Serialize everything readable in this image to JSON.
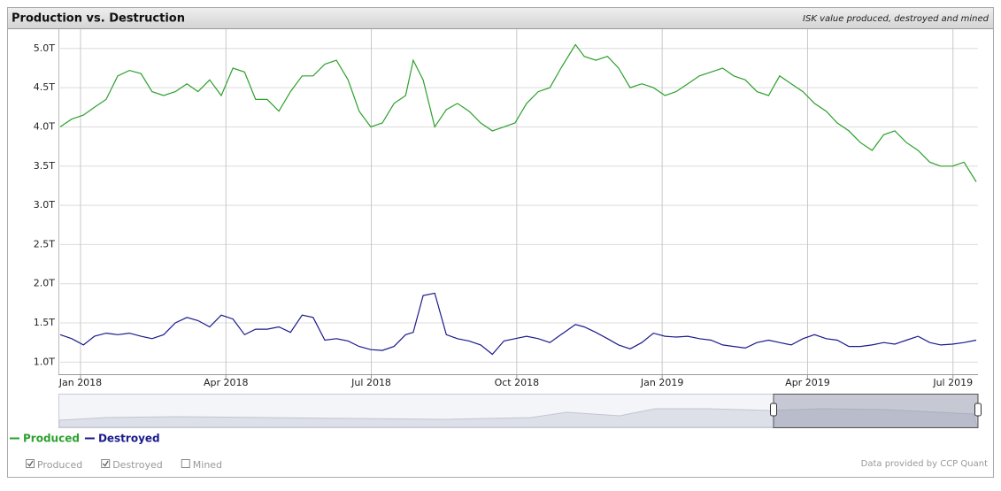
{
  "chart_data": {
    "type": "line",
    "title": "Production vs. Destruction",
    "subtitle": "ISK value produced, destroyed and mined",
    "x": [
      2017.965,
      2017.985,
      2018.005,
      2018.024,
      2018.044,
      2018.064,
      2018.084,
      2018.104,
      2018.123,
      2018.143,
      2018.163,
      2018.183,
      2018.202,
      2018.222,
      2018.242,
      2018.262,
      2018.282,
      2018.301,
      2018.321,
      2018.341,
      2018.361,
      2018.381,
      2018.4,
      2018.42,
      2018.44,
      2018.46,
      2018.479,
      2018.499,
      2018.519,
      2018.539,
      2018.559,
      2018.572,
      2018.589,
      2018.609,
      2018.629,
      2018.648,
      2018.668,
      2018.688,
      2018.708,
      2018.728,
      2018.747,
      2018.767,
      2018.787,
      2018.807,
      2018.826,
      2018.851,
      2018.866,
      2018.886,
      2018.906,
      2018.925,
      2018.945,
      2018.965,
      2018.985,
      2019.005,
      2019.024,
      2019.044,
      2019.064,
      2019.084,
      2019.104,
      2019.123,
      2019.143,
      2019.163,
      2019.183,
      2019.202,
      2019.222,
      2019.242,
      2019.262,
      2019.282,
      2019.301,
      2019.321,
      2019.341,
      2019.361,
      2019.381,
      2019.4,
      2019.42,
      2019.44,
      2019.46,
      2019.479,
      2019.499,
      2019.519,
      2019.54
    ],
    "series": [
      {
        "name": "Produced",
        "color": "#2ca02c",
        "values": [
          4.0,
          4.1,
          4.15,
          4.25,
          4.35,
          4.65,
          4.72,
          4.68,
          4.45,
          4.4,
          4.45,
          4.55,
          4.45,
          4.6,
          4.4,
          4.75,
          4.7,
          4.35,
          4.35,
          4.2,
          4.45,
          4.65,
          4.65,
          4.8,
          4.85,
          4.6,
          4.2,
          4.0,
          4.05,
          4.3,
          4.4,
          4.85,
          4.6,
          4.0,
          4.22,
          4.3,
          4.2,
          4.05,
          3.95,
          4.0,
          4.05,
          4.3,
          4.45,
          4.5,
          4.75,
          5.05,
          4.9,
          4.85,
          4.9,
          4.75,
          4.5,
          4.55,
          4.5,
          4.4,
          4.45,
          4.55,
          4.65,
          4.7,
          4.75,
          4.65,
          4.6,
          4.45,
          4.4,
          4.65,
          4.55,
          4.45,
          4.3,
          4.2,
          4.05,
          3.95,
          3.8,
          3.7,
          3.9,
          3.95,
          3.8,
          3.7,
          3.55,
          3.5,
          3.5,
          3.55,
          3.3
        ]
      },
      {
        "name": "Destroyed",
        "color": "#1a1a8c",
        "values": [
          1.35,
          1.3,
          1.22,
          1.33,
          1.37,
          1.35,
          1.37,
          1.33,
          1.3,
          1.35,
          1.5,
          1.57,
          1.53,
          1.45,
          1.6,
          1.55,
          1.35,
          1.42,
          1.42,
          1.45,
          1.38,
          1.6,
          1.57,
          1.28,
          1.3,
          1.27,
          1.2,
          1.16,
          1.15,
          1.2,
          1.35,
          1.38,
          1.85,
          1.88,
          1.35,
          1.3,
          1.27,
          1.22,
          1.1,
          1.27,
          1.3,
          1.33,
          1.3,
          1.25,
          1.35,
          1.48,
          1.45,
          1.38,
          1.3,
          1.22,
          1.17,
          1.25,
          1.37,
          1.33,
          1.32,
          1.33,
          1.3,
          1.28,
          1.22,
          1.2,
          1.18,
          1.25,
          1.28,
          1.25,
          1.22,
          1.3,
          1.35,
          1.3,
          1.28,
          1.2,
          1.2,
          1.22,
          1.25,
          1.23,
          1.28,
          1.33,
          1.25,
          1.22,
          1.23,
          1.25,
          1.28
        ]
      }
    ],
    "xlim": [
      2017.962,
      2019.543
    ],
    "xticks": [
      {
        "value": 2018.0,
        "label": "Jan 2018"
      },
      {
        "value": 2018.25,
        "label": "Apr 2018"
      },
      {
        "value": 2018.5,
        "label": "Jul 2018"
      },
      {
        "value": 2018.75,
        "label": "Oct 2018"
      },
      {
        "value": 2019.0,
        "label": "Jan 2019"
      },
      {
        "value": 2019.25,
        "label": "Apr 2019"
      },
      {
        "value": 2019.5,
        "label": "Jul 2019"
      }
    ],
    "ylim": [
      0.846,
      5.246
    ],
    "yticks": [
      {
        "value": 1,
        "label": "1.0T"
      },
      {
        "value": 1.5,
        "label": "1.5T"
      },
      {
        "value": 2,
        "label": "2.0T"
      },
      {
        "value": 2.5,
        "label": "2.5T"
      },
      {
        "value": 3,
        "label": "3.0T"
      },
      {
        "value": 3.5,
        "label": "3.5T"
      },
      {
        "value": 4,
        "label": "4.0T"
      },
      {
        "value": 4.5,
        "label": "4.5T"
      },
      {
        "value": 5,
        "label": "5.0T"
      }
    ],
    "grid": true
  },
  "toggles": [
    {
      "label": "Produced",
      "checked": true
    },
    {
      "label": "Destroyed",
      "checked": true
    },
    {
      "label": "Mined",
      "checked": false
    }
  ],
  "credit": "Data provided by CCP Quant"
}
